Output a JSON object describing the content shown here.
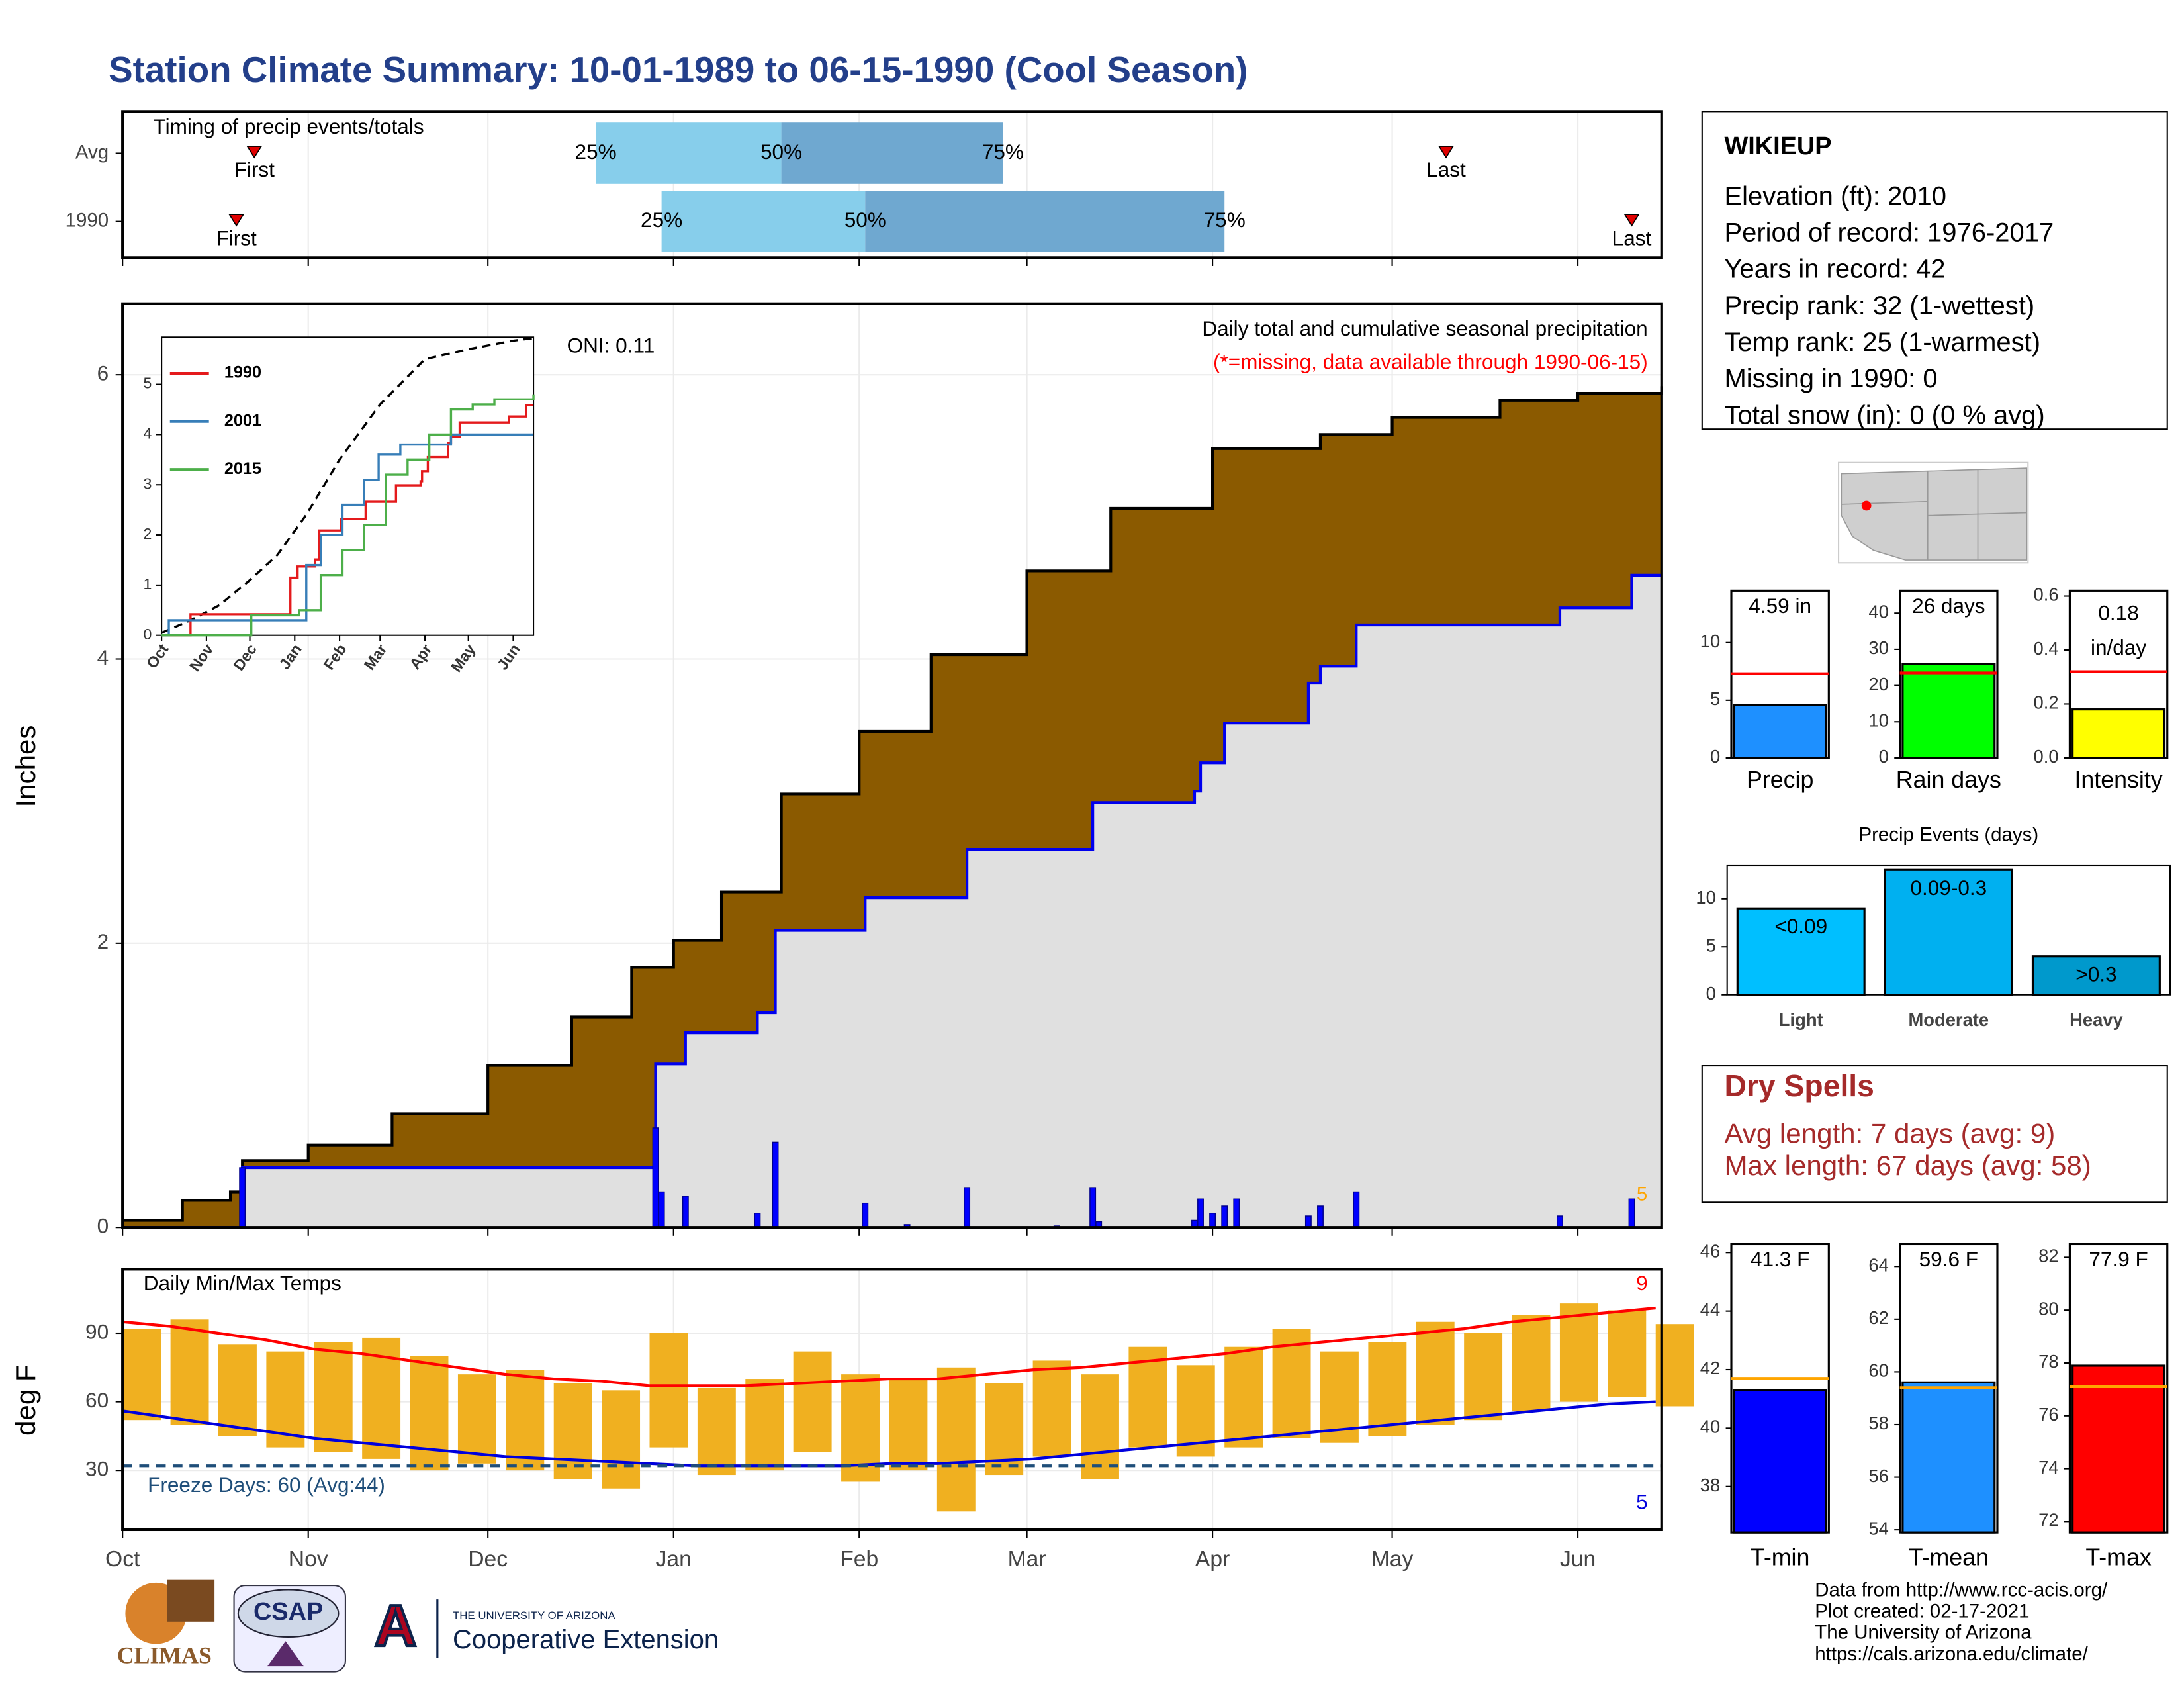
{
  "title": "Station Climate Summary: 10-01-1989 to 06-15-1990 (Cool Season)",
  "chart_data": [
    {
      "type": "timing",
      "title": "Timing of precip events/totals",
      "categories": [
        "Avg",
        "1990"
      ],
      "first": [
        22,
        19
      ],
      "p25": [
        79,
        90
      ],
      "p50": [
        110,
        124
      ],
      "p75": [
        147,
        184
      ],
      "last": [
        221,
        252
      ],
      "first_label": "First",
      "last_label": "Last",
      "p25_label": "25%",
      "p50_label": "50%",
      "p75_label": "75%",
      "xlim": [
        0,
        257
      ],
      "xticks": [
        0,
        31,
        61,
        92,
        123,
        151,
        182,
        212,
        243
      ],
      "grid": true,
      "colors": {
        "early": "#87ceeb",
        "late": "#6fa8d0",
        "marker": "#e00000"
      }
    },
    {
      "type": "precip",
      "title": "Daily total and cumulative seasonal precipitation",
      "subtitle": "(*=missing, data available through 1990-06-15)",
      "annotation": "ONI: 0.11",
      "count_label": "5",
      "ylabel": "Inches",
      "ylim": [
        0,
        6.5
      ],
      "yticks": [
        0,
        2,
        4,
        6
      ],
      "xlim": [
        0,
        257
      ],
      "xticks": [
        0,
        31,
        61,
        92,
        123,
        151,
        182,
        212,
        243
      ],
      "grid": true,
      "avg_x": [
        0,
        10,
        18,
        20,
        31,
        45,
        61,
        75,
        85,
        92,
        100,
        110,
        123,
        135,
        151,
        165,
        182,
        200,
        212,
        230,
        243,
        257
      ],
      "avg_values": [
        0.05,
        0.19,
        0.25,
        0.47,
        0.58,
        0.8,
        1.14,
        1.48,
        1.83,
        2.02,
        2.36,
        3.05,
        3.49,
        4.03,
        4.62,
        5.06,
        5.48,
        5.58,
        5.7,
        5.82,
        5.87,
        5.92
      ],
      "cum_x": [
        0,
        20,
        89,
        94,
        106,
        109,
        124,
        141,
        162,
        179,
        180,
        184,
        198,
        200,
        206,
        240,
        252,
        257
      ],
      "cum_values": [
        0,
        0.42,
        1.15,
        1.37,
        1.51,
        2.09,
        2.32,
        2.66,
        2.99,
        3.07,
        3.27,
        3.55,
        3.83,
        3.95,
        4.24,
        4.36,
        4.59,
        4.59
      ],
      "daily_x": [
        20,
        89,
        90,
        94,
        106,
        109,
        124,
        131,
        141,
        156,
        162,
        163,
        179,
        180,
        182,
        184,
        186,
        198,
        200,
        206,
        240,
        252
      ],
      "daily_values": [
        0.42,
        0.7,
        0.25,
        0.22,
        0.1,
        0.6,
        0.17,
        0.02,
        0.28,
        0.01,
        0.28,
        0.04,
        0.05,
        0.2,
        0.1,
        0.15,
        0.2,
        0.08,
        0.15,
        0.25,
        0.08,
        0.2
      ],
      "colors": {
        "avg": "#8b5a00",
        "season": "#e0e0e0",
        "line": "#0000ee",
        "daily": "#0000ff",
        "note": "#ff0000",
        "count": "#ffa500"
      }
    },
    {
      "type": "line",
      "xlim": [
        0,
        257
      ],
      "xticks": [
        {
          "value": 0,
          "label": "Oct"
        },
        {
          "value": 31,
          "label": "Nov"
        },
        {
          "value": 61,
          "label": "Dec"
        },
        {
          "value": 92,
          "label": "Jan"
        },
        {
          "value": 123,
          "label": "Feb"
        },
        {
          "value": 151,
          "label": "Mar"
        },
        {
          "value": 182,
          "label": "Apr"
        },
        {
          "value": 212,
          "label": "May"
        },
        {
          "value": 243,
          "label": "Jun"
        }
      ],
      "ylim": [
        0,
        5.94
      ],
      "yticks": [
        0,
        1,
        2,
        3,
        4,
        5
      ],
      "series": [
        {
          "name": "1990",
          "color": "#e41a1c",
          "x": [
            0,
            20,
            89,
            94,
            106,
            109,
            124,
            141,
            162,
            179,
            180,
            184,
            198,
            200,
            206,
            240,
            252,
            257
          ],
          "values": [
            0,
            0.42,
            1.15,
            1.37,
            1.51,
            2.09,
            2.32,
            2.66,
            2.99,
            3.07,
            3.27,
            3.55,
            3.83,
            3.95,
            4.24,
            4.36,
            4.59,
            4.59
          ]
        },
        {
          "name": "2001",
          "color": "#377eb8",
          "x": [
            0,
            5,
            92,
            100,
            110,
            125,
            140,
            150,
            165,
            200,
            257
          ],
          "values": [
            0,
            0.3,
            0.3,
            1.4,
            2.0,
            2.6,
            3.1,
            3.6,
            3.8,
            4.0,
            4.0
          ]
        },
        {
          "name": "2015",
          "color": "#4daf4a",
          "x": [
            0,
            62,
            95,
            110,
            125,
            140,
            155,
            170,
            185,
            200,
            215,
            230,
            257
          ],
          "values": [
            0,
            0.4,
            0.5,
            1.2,
            1.7,
            2.2,
            3.2,
            3.5,
            4.0,
            4.5,
            4.6,
            4.7,
            4.8
          ]
        }
      ],
      "avg_x": [
        0,
        20,
        40,
        61,
        80,
        100,
        123,
        151,
        182,
        212,
        243,
        257
      ],
      "avg_values": [
        0.05,
        0.3,
        0.6,
        1.1,
        1.6,
        2.4,
        3.5,
        4.6,
        5.5,
        5.7,
        5.87,
        5.92
      ]
    },
    {
      "type": "temps",
      "title": "Daily Min/Max Temps",
      "ylabel": "deg F",
      "ylim": [
        4,
        118
      ],
      "yticks": [
        30,
        60,
        90
      ],
      "xlim": [
        0,
        257
      ],
      "xticks": [
        {
          "value": 0,
          "label": "Oct"
        },
        {
          "value": 31,
          "label": "Nov"
        },
        {
          "value": 61,
          "label": "Dec"
        },
        {
          "value": 92,
          "label": "Jan"
        },
        {
          "value": 123,
          "label": "Feb"
        },
        {
          "value": 151,
          "label": "Mar"
        },
        {
          "value": 182,
          "label": "Apr"
        },
        {
          "value": 212,
          "label": "May"
        },
        {
          "value": 243,
          "label": "Jun"
        }
      ],
      "grid": true,
      "x": [
        0,
        8,
        16,
        24,
        32,
        40,
        48,
        56,
        64,
        72,
        80,
        88,
        96,
        104,
        112,
        120,
        128,
        136,
        144,
        152,
        160,
        168,
        176,
        184,
        192,
        200,
        208,
        216,
        224,
        232,
        240,
        248,
        256
      ],
      "max": [
        92,
        96,
        85,
        82,
        86,
        88,
        80,
        72,
        74,
        68,
        65,
        90,
        66,
        70,
        82,
        72,
        70,
        75,
        68,
        78,
        72,
        84,
        76,
        84,
        92,
        82,
        86,
        95,
        90,
        98,
        103,
        100,
        94
      ],
      "min": [
        52,
        50,
        45,
        40,
        38,
        35,
        30,
        33,
        30,
        26,
        22,
        40,
        28,
        30,
        38,
        25,
        30,
        12,
        28,
        36,
        26,
        40,
        36,
        40,
        44,
        42,
        45,
        50,
        52,
        56,
        60,
        62,
        58
      ],
      "avg_max": [
        95,
        93,
        90,
        87,
        83,
        81,
        78,
        75,
        72,
        70,
        69,
        67,
        67,
        67,
        68,
        69,
        70,
        70,
        72,
        74,
        75,
        77,
        79,
        81,
        84,
        86,
        88,
        90,
        92,
        95,
        97,
        99,
        101
      ],
      "avg_min": [
        56,
        53,
        50,
        47,
        44,
        42,
        40,
        38,
        36,
        35,
        34,
        33,
        32,
        32,
        32,
        32,
        33,
        33,
        34,
        35,
        37,
        39,
        41,
        43,
        45,
        47,
        49,
        51,
        53,
        55,
        57,
        59,
        60
      ],
      "freeze": 32,
      "freeze_label": "Freeze Days: 60 (Avg:44)",
      "max_count_label": "9",
      "min_count_label": "5",
      "colors": {
        "bar": "#f0b020",
        "avg_max": "#ff0000",
        "avg_min": "#0000dd",
        "freeze": "#1f4e79"
      }
    },
    {
      "type": "gauge",
      "label": "Precip",
      "value": 4.59,
      "value_label": "4.59 in",
      "avg": 7.3,
      "ylim": [
        0,
        14.5
      ],
      "yticks": [
        0,
        5,
        10
      ],
      "color": "#1e90ff",
      "avg_color": "#ff0000"
    },
    {
      "type": "gauge",
      "label": "Rain days",
      "value": 26,
      "value_label": "26 days",
      "avg": 23.5,
      "ylim": [
        0,
        46.2
      ],
      "yticks": [
        0,
        10,
        20,
        30,
        40
      ],
      "color": "#00ff00",
      "avg_color": "#ff0000"
    },
    {
      "type": "gauge",
      "label": "Intensity",
      "value": 0.18,
      "value_label": [
        "0.18",
        "in/day"
      ],
      "avg": 0.32,
      "ylim": [
        0,
        0.62
      ],
      "yticks": [
        {
          "value": 0,
          "label": "0.0"
        },
        0.2,
        0.4,
        0.6
      ],
      "color": "#ffff00",
      "avg_color": "#ff0000"
    },
    {
      "type": "bar",
      "title": "Precip Events (days)",
      "categories": [
        "Light",
        "Moderate",
        "Heavy"
      ],
      "values": [
        9,
        13,
        4
      ],
      "value_labels": [
        "<0.09",
        "0.09-0.3",
        ">0.3"
      ],
      "colors": [
        "#00bfff",
        "#00b0f0",
        "#0099cc"
      ],
      "ylim": [
        0,
        13.5
      ],
      "yticks": [
        0,
        5,
        10
      ]
    },
    {
      "type": "gauge",
      "label": "T-min",
      "value": 41.3,
      "value_label": "41.3 F",
      "avg": 41.7,
      "ylim": [
        36.43,
        46.29
      ],
      "yticks": [
        38,
        40,
        42,
        44,
        46
      ],
      "color": "#0000ff",
      "avg_color": "#ffa500"
    },
    {
      "type": "gauge",
      "label": "T-mean",
      "value": 59.6,
      "value_label": "59.6 F",
      "avg": 59.4,
      "ylim": [
        53.9,
        64.85
      ],
      "yticks": [
        54,
        56,
        58,
        60,
        62,
        64
      ],
      "color": "#1e90ff",
      "avg_color": "#ffa500"
    },
    {
      "type": "gauge",
      "label": "T-max",
      "value": 77.9,
      "value_label": "77.9 F",
      "avg": 77.1,
      "ylim": [
        71.58,
        82.5
      ],
      "yticks": [
        72,
        74,
        76,
        78,
        80,
        82
      ],
      "color": "#ff0000",
      "avg_color": "#ffa500"
    }
  ],
  "station": {
    "name": "WIKIEUP",
    "lines": [
      "Elevation (ft): 2010",
      "Period of record: 1976-2017",
      "Years in record: 42",
      "Precip rank: 32 (1-wettest)",
      "Temp rank: 25 (1-warmest)",
      "Missing in 1990: 0",
      "Total snow (in): 0 (0 % avg)"
    ]
  },
  "dry_spells": {
    "title": "Dry Spells",
    "lines": [
      "Avg length: 7 days (avg: 9)",
      "Max length: 67 days (avg: 58)"
    ]
  },
  "footer": {
    "lines": [
      "Data from http://www.rcc-acis.org/",
      "Plot created: 02-17-2021",
      "The University of Arizona",
      "https://cals.arizona.edu/climate/"
    ]
  },
  "logos": {
    "climas": "CLIMAS",
    "csap": "CSAP",
    "university": "THE UNIVERSITY OF ARIZONA",
    "extension": "Cooperative Extension"
  }
}
